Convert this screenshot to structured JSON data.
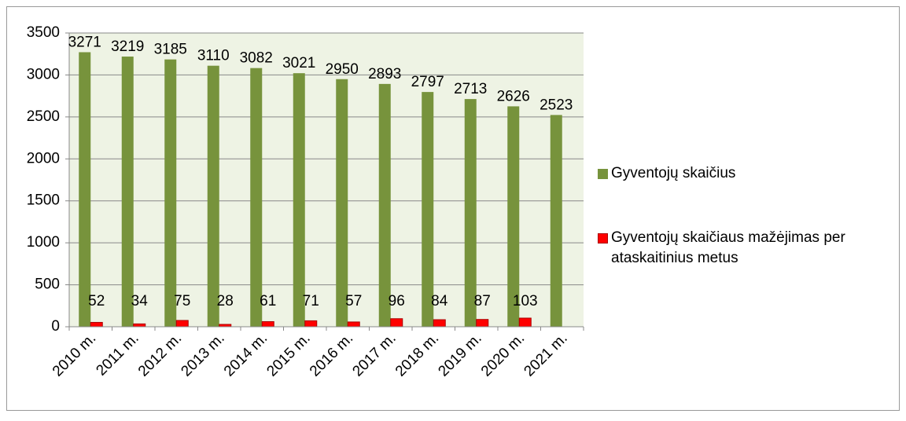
{
  "chart_data": {
    "type": "bar",
    "categories": [
      "2010 m.",
      "2011 m.",
      "2012 m.",
      "2013 m.",
      "2014 m.",
      "2015 m.",
      "2016 m.",
      "2017 m.",
      "2018 m.",
      "2019 m.",
      "2020 m.",
      "2021 m."
    ],
    "series": [
      {
        "name": "Gyventojų skaičius",
        "color": "#77933c",
        "values": [
          3271,
          3219,
          3185,
          3110,
          3082,
          3021,
          2950,
          2893,
          2797,
          2713,
          2626,
          2523
        ]
      },
      {
        "name": "Gyventojų skaičiaus mažėjimas per ataskaitinius metus",
        "color": "#ff0000",
        "values": [
          52,
          34,
          75,
          28,
          61,
          71,
          57,
          96,
          84,
          87,
          103,
          null
        ]
      }
    ],
    "ylim": [
      0,
      3500
    ],
    "yticks": [
      0,
      500,
      1000,
      1500,
      2000,
      2500,
      3000,
      3500
    ],
    "grid": true
  }
}
